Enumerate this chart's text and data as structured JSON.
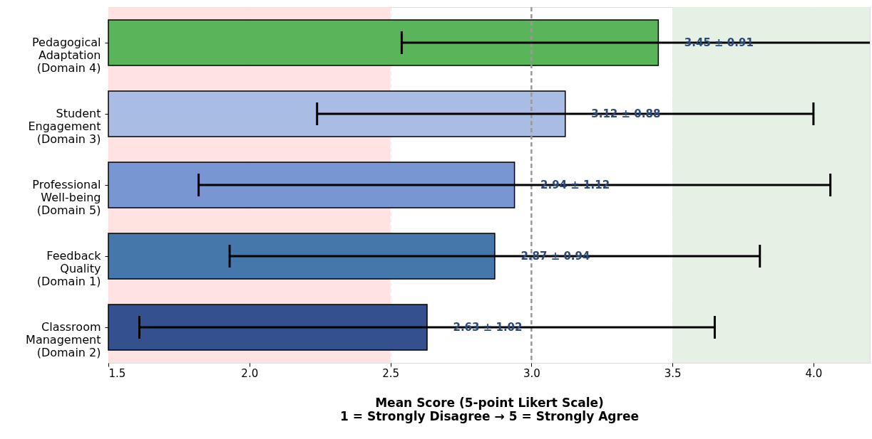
{
  "chart_data": {
    "type": "bar",
    "orientation": "horizontal",
    "xlabel": "Mean Score (5-point Likert Scale)\n1 = Strongly Disagree → 5 = Strongly Agree",
    "categories": [
      "Pedagogical\nAdaptation\n(Domain 4)",
      "Student\nEngagement\n(Domain 3)",
      "Professional\nWell-being\n(Domain 5)",
      "Feedback\nQuality\n(Domain 1)",
      "Classroom\nManagement\n(Domain 2)"
    ],
    "values": [
      3.45,
      3.12,
      2.94,
      2.87,
      2.63
    ],
    "colors": [
      "#5ab55a",
      "#a8bce4",
      "#7896d2",
      "#4577aa",
      "#34508f"
    ],
    "errors": [
      0.91,
      0.88,
      1.12,
      0.94,
      1.02
    ],
    "value_labels": [
      "3.45 ± 0.91",
      "3.12 ± 0.88",
      "2.94 ± 1.12",
      "2.87 ± 0.94",
      "2.63 ± 1.02"
    ],
    "xlim": [
      1.5,
      4.2
    ],
    "xticks": [
      1.5,
      {
        "value": 2.0,
        "label": "2.0"
      },
      2.5,
      {
        "value": 3.0,
        "label": "3.0"
      },
      3.5,
      {
        "value": 4.0,
        "label": "4.0"
      }
    ],
    "ref_lines": [
      {
        "axis": "x",
        "value": 3.0,
        "color": "#999999",
        "line_style": "dashed"
      }
    ],
    "bands": [
      {
        "axis": "x",
        "from": 1.5,
        "to": 2.5,
        "color": "#ffdede"
      },
      {
        "axis": "x",
        "from": 3.5,
        "to": 4.2,
        "color": "#e0eee0"
      }
    ],
    "grid": "x"
  }
}
